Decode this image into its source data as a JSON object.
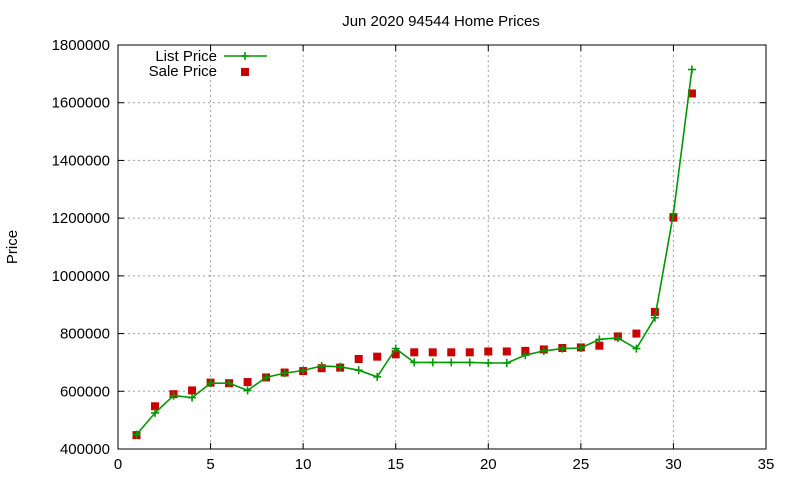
{
  "chart_data": {
    "type": "line",
    "title": "Jun 2020 94544 Home Prices",
    "xlabel": "",
    "ylabel": "Price",
    "xlim": [
      0,
      35
    ],
    "ylim": [
      400000,
      1800000
    ],
    "xticks": [
      0,
      5,
      10,
      15,
      20,
      25,
      30,
      35
    ],
    "yticks": [
      400000,
      600000,
      800000,
      1000000,
      1200000,
      1400000,
      1600000,
      1800000
    ],
    "grid": true,
    "legend": "top-left",
    "series": [
      {
        "name": "List Price",
        "style": "line-plus",
        "color": "#009900",
        "x": [
          1,
          2,
          3,
          4,
          5,
          6,
          7,
          8,
          9,
          10,
          11,
          12,
          13,
          14,
          15,
          16,
          17,
          18,
          19,
          20,
          21,
          22,
          23,
          24,
          25,
          26,
          27,
          28,
          29,
          30,
          31
        ],
        "values": [
          450000,
          525000,
          585000,
          578000,
          628000,
          628000,
          603000,
          648000,
          663000,
          672000,
          688000,
          685000,
          673000,
          650000,
          748000,
          700000,
          700000,
          700000,
          700000,
          698000,
          698000,
          725000,
          740000,
          748000,
          750000,
          780000,
          785000,
          748000,
          855000,
          1215000,
          1715000
        ]
      },
      {
        "name": "Sale Price",
        "style": "square",
        "color": "#cc0000",
        "x": [
          1,
          2,
          3,
          4,
          5,
          6,
          7,
          8,
          9,
          10,
          11,
          12,
          13,
          14,
          15,
          16,
          17,
          18,
          19,
          20,
          21,
          22,
          23,
          24,
          25,
          26,
          27,
          28,
          29,
          30,
          31
        ],
        "values": [
          448000,
          548000,
          590000,
          603000,
          630000,
          628000,
          632000,
          648000,
          665000,
          670000,
          680000,
          682000,
          712000,
          720000,
          728000,
          735000,
          735000,
          735000,
          735000,
          738000,
          738000,
          740000,
          745000,
          750000,
          752000,
          758000,
          790000,
          800000,
          875000,
          1202000,
          1632000
        ]
      }
    ]
  }
}
